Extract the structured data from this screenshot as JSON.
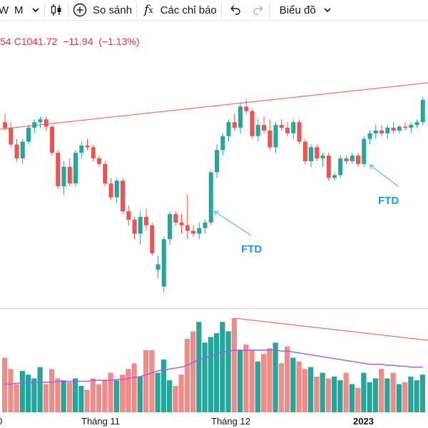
{
  "toolbar": {
    "interval_w": "W",
    "interval_m": "M",
    "compare_label": "So sánh",
    "indicators_label": "Các chỉ báo",
    "chart_type_label": "Biểu đồ"
  },
  "ohlc": {
    "open_partial": "54",
    "close_label": "C",
    "close_value": "1041.72",
    "change": "−11.94",
    "change_pct": "(−1.13%)"
  },
  "annotations": [
    {
      "text": "FTD"
    },
    {
      "text": "FTD"
    }
  ],
  "x_axis": {
    "first_partial": "0",
    "month1": "Tháng 11",
    "month2": "Tháng 12",
    "year": "2023"
  },
  "colors": {
    "up": "#26a69a",
    "down": "#ef5350",
    "up_volume": "#26a69a",
    "down_volume": "#f28b88",
    "trendline": "#f87171",
    "volume_ma": "#a855f7",
    "annotation": "#2196f3"
  },
  "chart_data": {
    "type": "candlestick",
    "series": [
      {
        "name": "price",
        "values": [
          {
            "o": 1160,
            "h": 1175,
            "l": 1145,
            "c": 1150
          },
          {
            "o": 1150,
            "h": 1160,
            "l": 1115,
            "c": 1120
          },
          {
            "o": 1120,
            "h": 1130,
            "l": 1090,
            "c": 1095
          },
          {
            "o": 1095,
            "h": 1130,
            "l": 1085,
            "c": 1125
          },
          {
            "o": 1125,
            "h": 1155,
            "l": 1120,
            "c": 1150
          },
          {
            "o": 1150,
            "h": 1165,
            "l": 1140,
            "c": 1160
          },
          {
            "o": 1160,
            "h": 1170,
            "l": 1150,
            "c": 1165
          },
          {
            "o": 1165,
            "h": 1170,
            "l": 1145,
            "c": 1152
          },
          {
            "o": 1152,
            "h": 1155,
            "l": 1100,
            "c": 1105
          },
          {
            "o": 1105,
            "h": 1110,
            "l": 1040,
            "c": 1045
          },
          {
            "o": 1045,
            "h": 1090,
            "l": 1030,
            "c": 1080
          },
          {
            "o": 1080,
            "h": 1095,
            "l": 1045,
            "c": 1050
          },
          {
            "o": 1050,
            "h": 1110,
            "l": 1045,
            "c": 1105
          },
          {
            "o": 1105,
            "h": 1125,
            "l": 1095,
            "c": 1118
          },
          {
            "o": 1118,
            "h": 1130,
            "l": 1110,
            "c": 1115
          },
          {
            "o": 1115,
            "h": 1120,
            "l": 1090,
            "c": 1095
          },
          {
            "o": 1095,
            "h": 1100,
            "l": 1080,
            "c": 1085
          },
          {
            "o": 1085,
            "h": 1090,
            "l": 1045,
            "c": 1050
          },
          {
            "o": 1050,
            "h": 1060,
            "l": 1020,
            "c": 1025
          },
          {
            "o": 1025,
            "h": 1060,
            "l": 1015,
            "c": 1055
          },
          {
            "o": 1055,
            "h": 1060,
            "l": 995,
            "c": 1000
          },
          {
            "o": 1000,
            "h": 1010,
            "l": 975,
            "c": 985
          },
          {
            "o": 985,
            "h": 990,
            "l": 950,
            "c": 960
          },
          {
            "o": 960,
            "h": 1000,
            "l": 940,
            "c": 990
          },
          {
            "o": 990,
            "h": 1005,
            "l": 965,
            "c": 975
          },
          {
            "o": 975,
            "h": 980,
            "l": 920,
            "c": 925
          },
          {
            "o": 895,
            "h": 920,
            "l": 880,
            "c": 905
          },
          {
            "o": 865,
            "h": 955,
            "l": 855,
            "c": 950
          },
          {
            "o": 950,
            "h": 1000,
            "l": 940,
            "c": 995
          },
          {
            "o": 995,
            "h": 1000,
            "l": 975,
            "c": 980
          },
          {
            "o": 980,
            "h": 995,
            "l": 960,
            "c": 975
          },
          {
            "o": 975,
            "h": 1030,
            "l": 950,
            "c": 965
          },
          {
            "o": 965,
            "h": 975,
            "l": 955,
            "c": 960
          },
          {
            "o": 960,
            "h": 980,
            "l": 950,
            "c": 970
          },
          {
            "o": 970,
            "h": 985,
            "l": 960,
            "c": 980
          },
          {
            "o": 980,
            "h": 1075,
            "l": 975,
            "c": 1070
          },
          {
            "o": 1070,
            "h": 1120,
            "l": 1060,
            "c": 1110
          },
          {
            "o": 1110,
            "h": 1140,
            "l": 1100,
            "c": 1135
          },
          {
            "o": 1135,
            "h": 1165,
            "l": 1125,
            "c": 1160
          },
          {
            "o": 1160,
            "h": 1175,
            "l": 1145,
            "c": 1150
          },
          {
            "o": 1150,
            "h": 1195,
            "l": 1140,
            "c": 1188
          },
          {
            "o": 1188,
            "h": 1200,
            "l": 1175,
            "c": 1180
          },
          {
            "o": 1180,
            "h": 1185,
            "l": 1130,
            "c": 1135
          },
          {
            "o": 1135,
            "h": 1165,
            "l": 1125,
            "c": 1155
          },
          {
            "o": 1155,
            "h": 1170,
            "l": 1140,
            "c": 1145
          },
          {
            "o": 1145,
            "h": 1165,
            "l": 1110,
            "c": 1115
          },
          {
            "o": 1115,
            "h": 1160,
            "l": 1105,
            "c": 1155
          },
          {
            "o": 1155,
            "h": 1165,
            "l": 1145,
            "c": 1150
          },
          {
            "o": 1150,
            "h": 1160,
            "l": 1135,
            "c": 1140
          },
          {
            "o": 1140,
            "h": 1165,
            "l": 1130,
            "c": 1160
          },
          {
            "o": 1160,
            "h": 1165,
            "l": 1120,
            "c": 1125
          },
          {
            "o": 1125,
            "h": 1130,
            "l": 1085,
            "c": 1090
          },
          {
            "o": 1090,
            "h": 1120,
            "l": 1080,
            "c": 1115
          },
          {
            "o": 1115,
            "h": 1120,
            "l": 1090,
            "c": 1095
          },
          {
            "o": 1095,
            "h": 1105,
            "l": 1080,
            "c": 1100
          },
          {
            "o": 1100,
            "h": 1105,
            "l": 1055,
            "c": 1060
          },
          {
            "o": 1060,
            "h": 1070,
            "l": 1055,
            "c": 1065
          },
          {
            "o": 1065,
            "h": 1100,
            "l": 1060,
            "c": 1095
          },
          {
            "o": 1095,
            "h": 1100,
            "l": 1085,
            "c": 1090
          },
          {
            "o": 1090,
            "h": 1105,
            "l": 1085,
            "c": 1100
          },
          {
            "o": 1100,
            "h": 1105,
            "l": 1080,
            "c": 1085
          },
          {
            "o": 1085,
            "h": 1135,
            "l": 1080,
            "c": 1130
          },
          {
            "o": 1130,
            "h": 1145,
            "l": 1120,
            "c": 1140
          },
          {
            "o": 1140,
            "h": 1155,
            "l": 1130,
            "c": 1145
          },
          {
            "o": 1145,
            "h": 1155,
            "l": 1135,
            "c": 1140
          },
          {
            "o": 1140,
            "h": 1155,
            "l": 1130,
            "c": 1150
          },
          {
            "o": 1150,
            "h": 1160,
            "l": 1140,
            "c": 1145
          },
          {
            "o": 1145,
            "h": 1155,
            "l": 1140,
            "c": 1152
          },
          {
            "o": 1152,
            "h": 1160,
            "l": 1145,
            "c": 1150
          },
          {
            "o": 1150,
            "h": 1160,
            "l": 1140,
            "c": 1155
          },
          {
            "o": 1155,
            "h": 1165,
            "l": 1150,
            "c": 1160
          },
          {
            "o": 1160,
            "h": 1205,
            "l": 1155,
            "c": 1200
          }
        ]
      },
      {
        "name": "volume",
        "values": [
          58,
          46,
          30,
          44,
          40,
          36,
          48,
          30,
          46,
          36,
          34,
          32,
          36,
          28,
          24,
          36,
          30,
          34,
          42,
          34,
          40,
          46,
          52,
          38,
          66,
          66,
          42,
          56,
          34,
          28,
          40,
          78,
          86,
          96,
          74,
          80,
          84,
          96,
          86,
          100,
          66,
          72,
          66,
          54,
          62,
          68,
          74,
          52,
          70,
          58,
          54,
          46,
          48,
          38,
          42,
          36,
          38,
          34,
          42,
          30,
          26,
          42,
          32,
          36,
          46,
          36,
          42,
          30,
          32,
          38,
          34,
          40
        ]
      },
      {
        "name": "volume_ma",
        "values": [
          30,
          30,
          31,
          31,
          31,
          32,
          32,
          32,
          32,
          33,
          33,
          33,
          33,
          33,
          33,
          34,
          34,
          34,
          34,
          35,
          35,
          36,
          37,
          38,
          40,
          42,
          44,
          45,
          46,
          47,
          48,
          50,
          53,
          56,
          58,
          60,
          62,
          64,
          65,
          66,
          66,
          66,
          66,
          66,
          66,
          66,
          66,
          65,
          65,
          64,
          63,
          62,
          61,
          60,
          59,
          58,
          57,
          56,
          55,
          54,
          53,
          52,
          51,
          51,
          51,
          50,
          50,
          49,
          49,
          48,
          48,
          48
        ]
      }
    ],
    "x_tick_labels": [
      "Tháng 11",
      "Tháng 12",
      "2023"
    ],
    "grid": false,
    "legend": "none"
  }
}
